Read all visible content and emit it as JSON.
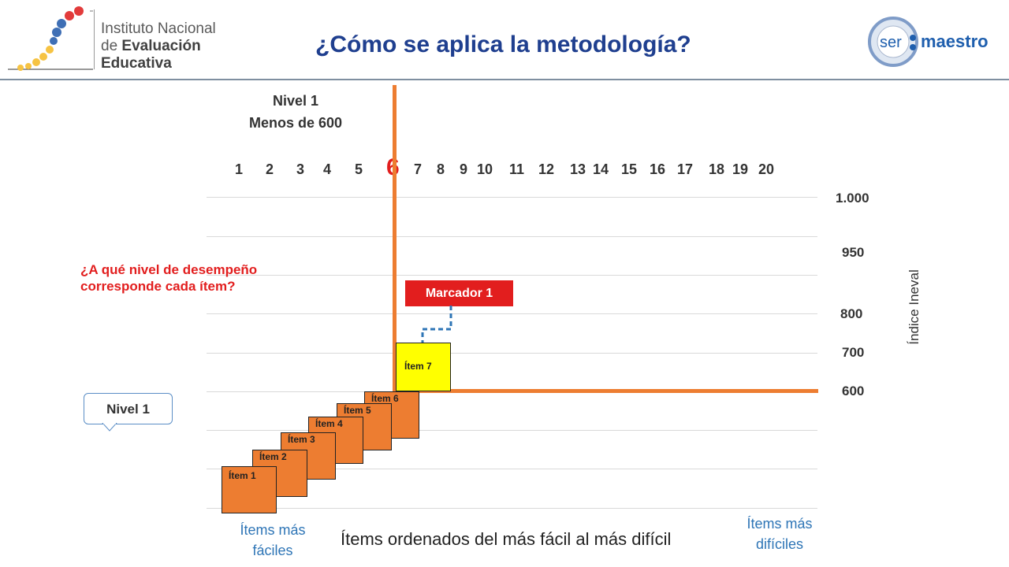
{
  "logo": {
    "line1": "Instituto Nacional",
    "line2a": "de ",
    "line2b": "Evaluación",
    "line3": "Educativa"
  },
  "title": "¿Cómo se aplica la metodología?",
  "ser_maestro": {
    "ser": "ser",
    "maestro": "maestro"
  },
  "level": {
    "name": "Nivel 1",
    "range": "Menos de 600"
  },
  "item_numbers": [
    "1",
    "2",
    "3",
    "4",
    "5",
    "7",
    "8",
    "9",
    "10",
    "11",
    "12",
    "13",
    "14",
    "15",
    "16",
    "17",
    "18",
    "19",
    "20"
  ],
  "highlight_number": "6",
  "scale_labels": [
    "1.000",
    "950",
    "800",
    "700",
    "600"
  ],
  "axis_label": "Índice Ineval",
  "question": {
    "line1": "¿A qué nivel de desempeño",
    "line2": "corresponde cada ítem?"
  },
  "callout": "Nivel 1",
  "marker": "Marcador 1",
  "items": [
    "Ítem 1",
    "Ítem 2",
    "Ítem 3",
    "Ítem 4",
    "Ítem 5",
    "Ítem 6"
  ],
  "item7": "Ítem 7",
  "bottom": {
    "main": "Ítems ordenados del más fácil al más difícil",
    "easy": "Ítems más fáciles",
    "hard": "Ítems más difíciles"
  },
  "colors": {
    "orange": "#ed7d31",
    "red": "#e21e1e",
    "blue": "#2e75b6",
    "title": "#1f3f8f",
    "yellow": "#ffff00"
  }
}
